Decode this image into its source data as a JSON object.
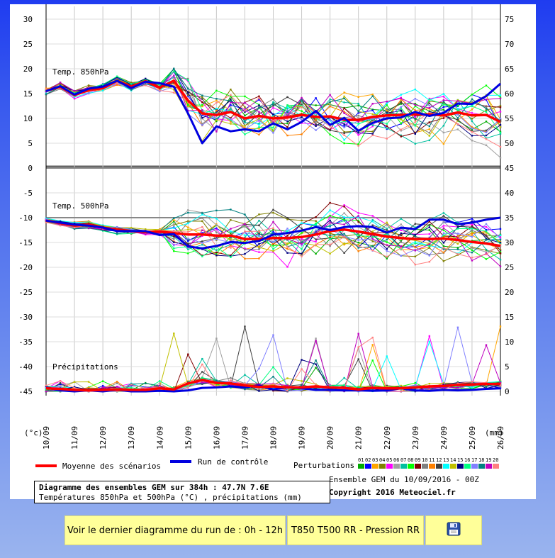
{
  "chart_data": {
    "type": "line",
    "title": "Diagramme des ensembles GEM sur 384h : 47.7N 7.6E",
    "subtitle": "Températures 850hPa et 500hPa (°C) , précipitations (mm)",
    "left_unit": "(°c)",
    "right_unit": "(mm)",
    "left_ticks": [
      "30",
      "25",
      "20",
      "15",
      "10",
      "5",
      "0",
      "-5",
      "-10",
      "-15",
      "-20",
      "-25",
      "-30",
      "-35",
      "-40",
      "-45"
    ],
    "right_ticks": [
      "75",
      "70",
      "65",
      "60",
      "55",
      "50",
      "45",
      "40",
      "35",
      "30",
      "25",
      "20",
      "15",
      "10",
      "5",
      "0"
    ],
    "x_dates": [
      "10/09",
      "11/09",
      "12/09",
      "13/09",
      "14/09",
      "15/09",
      "16/09",
      "17/09",
      "18/09",
      "19/09",
      "20/09",
      "21/09",
      "22/09",
      "23/09",
      "24/09",
      "25/09",
      "26/09"
    ],
    "panels": [
      {
        "label": "Temp. 850hPa",
        "left_range": [
          0,
          20
        ]
      },
      {
        "label": "Temp. 500hPa",
        "left_range": [
          -25,
          -5
        ]
      },
      {
        "label": "Précipitations",
        "right_range": [
          0,
          15
        ]
      }
    ],
    "mean_t850": [
      15.5,
      16.4,
      14.7,
      15.7,
      16.1,
      17.6,
      16.4,
      17.5,
      16.2,
      17.6,
      13.6,
      11.0,
      10.7,
      11.3,
      10.0,
      10.5,
      10.0,
      10.2,
      10.7,
      10.3,
      10.4,
      9.7,
      9.7,
      10.3,
      10.6,
      10.7,
      10.8,
      10.8,
      10.6,
      11.2,
      10.6,
      10.7,
      9.3
    ],
    "control_t850": [
      15.5,
      16.5,
      14.8,
      16.0,
      16.4,
      17.6,
      16.1,
      17.4,
      17.1,
      16.4,
      11.0,
      5.0,
      8.4,
      7.4,
      7.8,
      7.4,
      9.0,
      7.8,
      9.3,
      11.5,
      8.7,
      10.1,
      7.5,
      9.1,
      10.0,
      10.2,
      11.3,
      10.5,
      11.1,
      13.0,
      12.9,
      14.5,
      17.0
    ],
    "mean_t500": [
      -10.6,
      -11.1,
      -11.6,
      -11.4,
      -12.0,
      -12.4,
      -12.7,
      -12.9,
      -12.8,
      -13.1,
      -13.4,
      -13.4,
      -13.6,
      -13.6,
      -14.3,
      -14.3,
      -14.1,
      -14.1,
      -13.9,
      -13.4,
      -12.7,
      -12.4,
      -12.8,
      -13.3,
      -13.8,
      -14.1,
      -14.3,
      -14.3,
      -14.2,
      -14.5,
      -14.9,
      -15.2,
      -15.7
    ],
    "control_t500": [
      -10.6,
      -11.0,
      -11.4,
      -11.6,
      -12.0,
      -12.7,
      -12.7,
      -12.7,
      -13.5,
      -13.3,
      -15.8,
      -16.2,
      -15.7,
      -14.9,
      -15.1,
      -14.7,
      -13.4,
      -13.1,
      -12.6,
      -11.9,
      -12.5,
      -11.9,
      -11.7,
      -11.9,
      -13.0,
      -12.0,
      -12.3,
      -10.4,
      -10.4,
      -11.3,
      -11.0,
      -10.4,
      -10.0
    ],
    "mean_precip": [
      0.6,
      0.5,
      0.3,
      0.2,
      0.3,
      0.4,
      0.3,
      0.3,
      0.6,
      0.4,
      1.6,
      2.3,
      1.7,
      1.6,
      1.2,
      0.9,
      1.0,
      0.8,
      0.8,
      1.0,
      0.8,
      0.7,
      0.4,
      0.7,
      0.6,
      0.6,
      0.8,
      1.0,
      1.1,
      1.3,
      1.4,
      1.5,
      1.5
    ],
    "control_precip": [
      0.8,
      0.2,
      0,
      0.2,
      0,
      0.3,
      0,
      0,
      0.1,
      0,
      0.2,
      0.7,
      0.8,
      1.0,
      0.8,
      1.2,
      0.4,
      0.8,
      0.6,
      0.3,
      0.3,
      0.2,
      0.2,
      0.1,
      0.2,
      0.6,
      0.2,
      0.1,
      0.3,
      0.2,
      0.3,
      0.5,
      0.6
    ],
    "legend": {
      "mean": "Moyenne des scénarios",
      "control": "Run de contrôle",
      "perturbations": "Perturbations",
      "perturbation_ids": [
        "01",
        "02",
        "03",
        "04",
        "05",
        "06",
        "07",
        "08",
        "09",
        "10",
        "11",
        "12",
        "13",
        "14",
        "15",
        "16",
        "17",
        "18",
        "19",
        "20"
      ]
    },
    "colors": {
      "mean": "#ff0000",
      "control": "#0000e0",
      "perturbations": [
        "#00aa00",
        "#0000ff",
        "#ffa500",
        "#808000",
        "#ff00ff",
        "#a0a0a0",
        "#00c0a0",
        "#00ff00",
        "#800000",
        "#808080",
        "#ff8000",
        "#404040",
        "#00ffff",
        "#c0c000",
        "#000080",
        "#00ff80",
        "#8080ff",
        "#008080",
        "#c000c0",
        "#ff8080"
      ]
    }
  },
  "info": {
    "ensemble": "Ensemble GEM du 10/09/2016 - 00Z",
    "copyright": "Copyright 2016 Meteociel.fr"
  },
  "buttons": {
    "last_run": "Voir le dernier diagramme du run de : 0h - 12h",
    "type": "T850 T500 RR - Pression RR",
    "save_icon": "floppy-disk-icon"
  }
}
